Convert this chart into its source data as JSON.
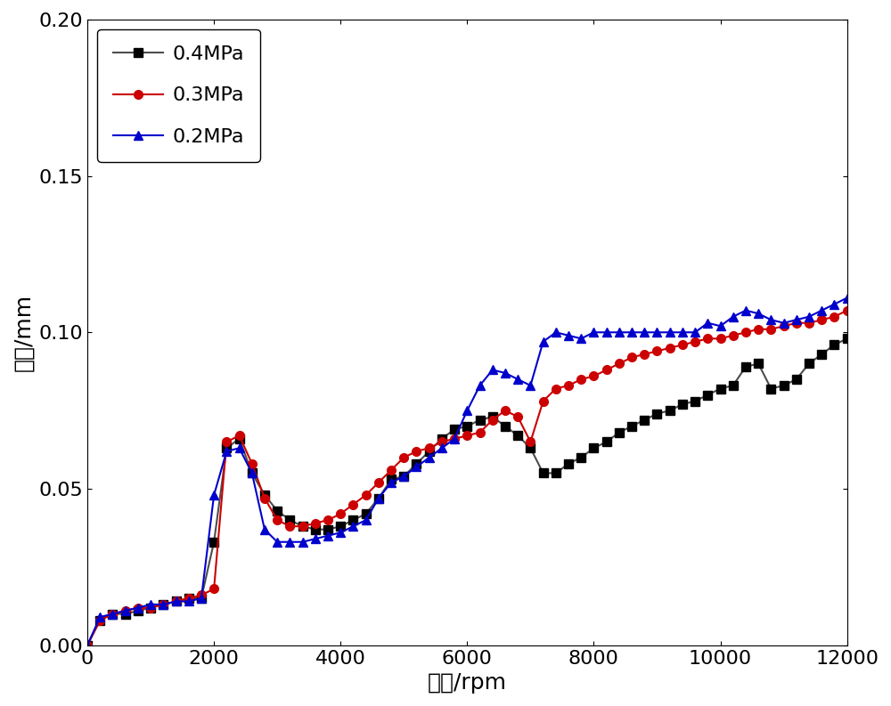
{
  "series": {
    "0.4MPa": {
      "color": "#4d4d4d",
      "marker": "s",
      "markercolor": "#000000",
      "x": [
        0,
        200,
        400,
        600,
        800,
        1000,
        1200,
        1400,
        1600,
        1800,
        2000,
        2200,
        2400,
        2600,
        2800,
        3000,
        3200,
        3400,
        3600,
        3800,
        4000,
        4200,
        4400,
        4600,
        4800,
        5000,
        5200,
        5400,
        5600,
        5800,
        6000,
        6200,
        6400,
        6600,
        6800,
        7000,
        7200,
        7400,
        7600,
        7800,
        8000,
        8200,
        8400,
        8600,
        8800,
        9000,
        9200,
        9400,
        9600,
        9800,
        10000,
        10200,
        10400,
        10600,
        10800,
        11000,
        11200,
        11400,
        11600,
        11800,
        12000
      ],
      "y": [
        0.0,
        0.008,
        0.01,
        0.01,
        0.011,
        0.012,
        0.013,
        0.014,
        0.015,
        0.015,
        0.033,
        0.063,
        0.066,
        0.055,
        0.048,
        0.043,
        0.04,
        0.038,
        0.037,
        0.037,
        0.038,
        0.04,
        0.042,
        0.047,
        0.053,
        0.054,
        0.058,
        0.062,
        0.066,
        0.069,
        0.07,
        0.072,
        0.073,
        0.07,
        0.067,
        0.063,
        0.055,
        0.055,
        0.058,
        0.06,
        0.063,
        0.065,
        0.068,
        0.07,
        0.072,
        0.074,
        0.075,
        0.077,
        0.078,
        0.08,
        0.082,
        0.083,
        0.089,
        0.09,
        0.082,
        0.083,
        0.085,
        0.09,
        0.093,
        0.096,
        0.098
      ]
    },
    "0.3MPa": {
      "color": "#cc0000",
      "marker": "o",
      "markercolor": "#cc0000",
      "x": [
        0,
        200,
        400,
        600,
        800,
        1000,
        1200,
        1400,
        1600,
        1800,
        2000,
        2200,
        2400,
        2600,
        2800,
        3000,
        3200,
        3400,
        3600,
        3800,
        4000,
        4200,
        4400,
        4600,
        4800,
        5000,
        5200,
        5400,
        5600,
        5800,
        6000,
        6200,
        6400,
        6600,
        6800,
        7000,
        7200,
        7400,
        7600,
        7800,
        8000,
        8200,
        8400,
        8600,
        8800,
        9000,
        9200,
        9400,
        9600,
        9800,
        10000,
        10200,
        10400,
        10600,
        10800,
        11000,
        11200,
        11400,
        11600,
        11800,
        12000
      ],
      "y": [
        0.0,
        0.008,
        0.01,
        0.011,
        0.012,
        0.012,
        0.013,
        0.014,
        0.015,
        0.016,
        0.018,
        0.065,
        0.067,
        0.058,
        0.047,
        0.04,
        0.038,
        0.038,
        0.039,
        0.04,
        0.042,
        0.045,
        0.048,
        0.052,
        0.056,
        0.06,
        0.062,
        0.063,
        0.065,
        0.066,
        0.067,
        0.068,
        0.072,
        0.075,
        0.073,
        0.065,
        0.078,
        0.082,
        0.083,
        0.085,
        0.086,
        0.088,
        0.09,
        0.092,
        0.093,
        0.094,
        0.095,
        0.096,
        0.097,
        0.098,
        0.098,
        0.099,
        0.1,
        0.101,
        0.101,
        0.102,
        0.103,
        0.103,
        0.104,
        0.105,
        0.107
      ]
    },
    "0.2MPa": {
      "color": "#0000cc",
      "marker": "^",
      "markercolor": "#0000cc",
      "x": [
        0,
        200,
        400,
        600,
        800,
        1000,
        1200,
        1400,
        1600,
        1800,
        2000,
        2200,
        2400,
        2600,
        2800,
        3000,
        3200,
        3400,
        3600,
        3800,
        4000,
        4200,
        4400,
        4600,
        4800,
        5000,
        5200,
        5400,
        5600,
        5800,
        6000,
        6200,
        6400,
        6600,
        6800,
        7000,
        7200,
        7400,
        7600,
        7800,
        8000,
        8200,
        8400,
        8600,
        8800,
        9000,
        9200,
        9400,
        9600,
        9800,
        10000,
        10200,
        10400,
        10600,
        10800,
        11000,
        11200,
        11400,
        11600,
        11800,
        12000
      ],
      "y": [
        0.0,
        0.009,
        0.01,
        0.011,
        0.012,
        0.013,
        0.013,
        0.014,
        0.014,
        0.015,
        0.048,
        0.062,
        0.063,
        0.055,
        0.037,
        0.033,
        0.033,
        0.033,
        0.034,
        0.035,
        0.036,
        0.038,
        0.04,
        0.047,
        0.052,
        0.054,
        0.057,
        0.06,
        0.063,
        0.066,
        0.075,
        0.083,
        0.088,
        0.087,
        0.085,
        0.083,
        0.097,
        0.1,
        0.099,
        0.098,
        0.1,
        0.1,
        0.1,
        0.1,
        0.1,
        0.1,
        0.1,
        0.1,
        0.1,
        0.103,
        0.102,
        0.105,
        0.107,
        0.106,
        0.104,
        0.103,
        0.104,
        0.105,
        0.107,
        0.109,
        0.111
      ]
    }
  },
  "xlabel": "转速/rpm",
  "ylabel": "振幅/mm",
  "xlim": [
    0,
    12000
  ],
  "ylim": [
    0.0,
    0.2
  ],
  "xticks": [
    0,
    2000,
    4000,
    6000,
    8000,
    10000,
    12000
  ],
  "yticks": [
    0.0,
    0.05,
    0.1,
    0.15,
    0.2
  ],
  "legend_labels": [
    "0.4MPa",
    "0.3MPa",
    "0.2MPa"
  ],
  "legend_loc": "upper left",
  "axis_fontsize": 18,
  "tick_fontsize": 16,
  "legend_fontsize": 16,
  "marker_size": 7,
  "line_width": 1.5,
  "background_color": "#ffffff"
}
